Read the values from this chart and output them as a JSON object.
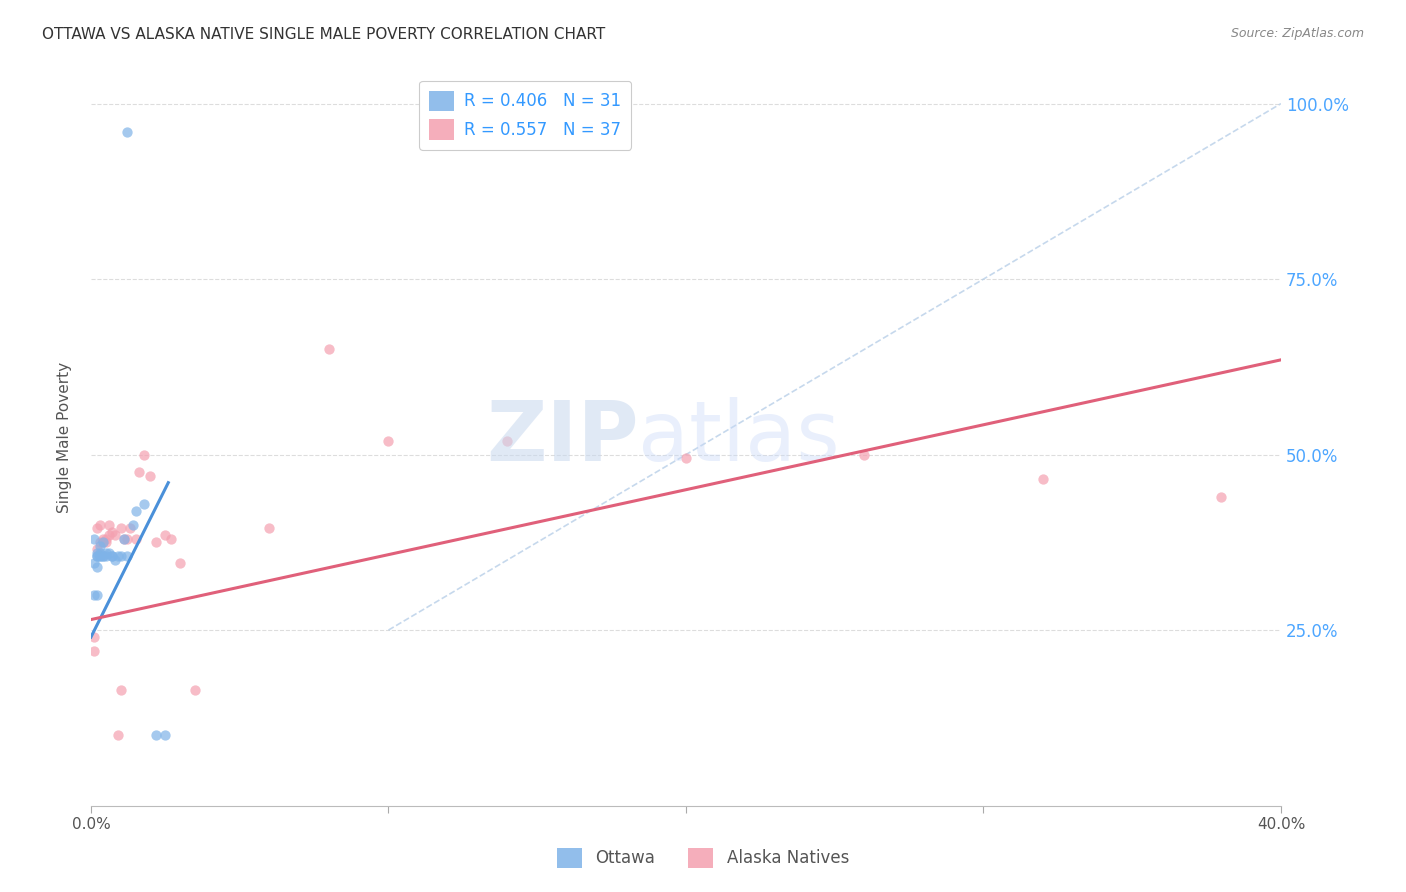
{
  "title": "OTTAWA VS ALASKA NATIVE SINGLE MALE POVERTY CORRELATION CHART",
  "source": "Source: ZipAtlas.com",
  "ylabel": "Single Male Poverty",
  "ytick_labels": [
    "100.0%",
    "75.0%",
    "50.0%",
    "25.0%"
  ],
  "ytick_values": [
    1.0,
    0.75,
    0.5,
    0.25
  ],
  "xlim": [
    0.0,
    0.4
  ],
  "ylim": [
    0.0,
    1.05
  ],
  "legend_entries": [
    {
      "label": "R = 0.406   N = 31",
      "color": "#7fb3e8"
    },
    {
      "label": "R = 0.557   N = 37",
      "color": "#f4a0b0"
    }
  ],
  "ottawa_scatter": [
    [
      0.001,
      0.38
    ],
    [
      0.001,
      0.345
    ],
    [
      0.002,
      0.355
    ],
    [
      0.002,
      0.34
    ],
    [
      0.002,
      0.355
    ],
    [
      0.002,
      0.36
    ],
    [
      0.003,
      0.355
    ],
    [
      0.003,
      0.36
    ],
    [
      0.003,
      0.355
    ],
    [
      0.003,
      0.37
    ],
    [
      0.004,
      0.355
    ],
    [
      0.004,
      0.375
    ],
    [
      0.004,
      0.355
    ],
    [
      0.005,
      0.36
    ],
    [
      0.005,
      0.355
    ],
    [
      0.006,
      0.36
    ],
    [
      0.007,
      0.355
    ],
    [
      0.007,
      0.355
    ],
    [
      0.008,
      0.35
    ],
    [
      0.009,
      0.355
    ],
    [
      0.01,
      0.355
    ],
    [
      0.011,
      0.38
    ],
    [
      0.012,
      0.355
    ],
    [
      0.014,
      0.4
    ],
    [
      0.015,
      0.42
    ],
    [
      0.018,
      0.43
    ],
    [
      0.022,
      0.1
    ],
    [
      0.025,
      0.1
    ],
    [
      0.001,
      0.3
    ],
    [
      0.002,
      0.3
    ],
    [
      0.012,
      0.96
    ]
  ],
  "alaska_scatter": [
    [
      0.001,
      0.24
    ],
    [
      0.001,
      0.22
    ],
    [
      0.002,
      0.395
    ],
    [
      0.002,
      0.365
    ],
    [
      0.003,
      0.4
    ],
    [
      0.003,
      0.375
    ],
    [
      0.004,
      0.38
    ],
    [
      0.004,
      0.375
    ],
    [
      0.005,
      0.375
    ],
    [
      0.005,
      0.38
    ],
    [
      0.006,
      0.385
    ],
    [
      0.006,
      0.4
    ],
    [
      0.007,
      0.39
    ],
    [
      0.008,
      0.385
    ],
    [
      0.009,
      0.1
    ],
    [
      0.01,
      0.165
    ],
    [
      0.01,
      0.395
    ],
    [
      0.011,
      0.38
    ],
    [
      0.012,
      0.38
    ],
    [
      0.013,
      0.395
    ],
    [
      0.015,
      0.38
    ],
    [
      0.016,
      0.475
    ],
    [
      0.018,
      0.5
    ],
    [
      0.02,
      0.47
    ],
    [
      0.022,
      0.375
    ],
    [
      0.025,
      0.385
    ],
    [
      0.027,
      0.38
    ],
    [
      0.03,
      0.345
    ],
    [
      0.035,
      0.165
    ],
    [
      0.06,
      0.395
    ],
    [
      0.08,
      0.65
    ],
    [
      0.1,
      0.52
    ],
    [
      0.14,
      0.52
    ],
    [
      0.2,
      0.495
    ],
    [
      0.26,
      0.5
    ],
    [
      0.32,
      0.465
    ],
    [
      0.38,
      0.44
    ]
  ],
  "ottawa_trendline": {
    "x": [
      0.0,
      0.026
    ],
    "y": [
      0.24,
      0.46
    ],
    "color": "#4a90d9",
    "linestyle": "solid",
    "linewidth": 2.2
  },
  "alaska_trendline": {
    "x": [
      0.0,
      0.4
    ],
    "y": [
      0.265,
      0.635
    ],
    "color": "#e0607a",
    "linestyle": "solid",
    "linewidth": 2.2
  },
  "diagonal_line": {
    "x": [
      0.1,
      0.4
    ],
    "y": [
      0.25,
      1.0
    ],
    "color": "#b8cfe8",
    "linestyle": "dashed",
    "linewidth": 1.2
  },
  "ottawa_color": "#7fb3e8",
  "alaska_color": "#f4a0b0",
  "scatter_alpha": 0.7,
  "scatter_size": 55,
  "background_color": "#ffffff",
  "grid_color": "#dddddd",
  "title_color": "#333333",
  "axis_label_color": "#555555",
  "right_tick_color": "#4da6ff",
  "legend_label_color": "#3399ff"
}
